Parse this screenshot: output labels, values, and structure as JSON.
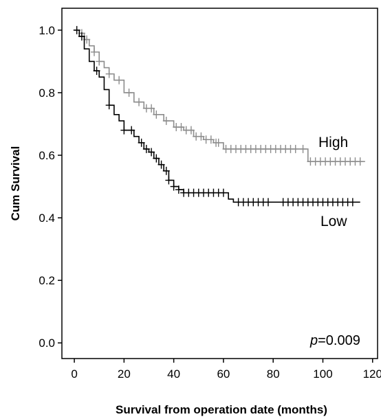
{
  "chart_data": {
    "type": "line",
    "step": true,
    "xlabel": "Survival from operation date (months)",
    "ylabel": "Cum Survival",
    "xlim": [
      -5,
      122
    ],
    "ylim": [
      -0.05,
      1.07
    ],
    "x_ticks": [
      0,
      20,
      40,
      60,
      80,
      100,
      120
    ],
    "y_ticks": [
      "0.0",
      "0.2",
      "0.4",
      "0.6",
      "0.8",
      "1.0"
    ],
    "annotation_italic": "p",
    "annotation_value": "=0.009",
    "series": [
      {
        "name": "High",
        "color": "#8c8c8c",
        "points": [
          [
            0,
            1.0
          ],
          [
            2,
            0.99
          ],
          [
            4,
            0.97
          ],
          [
            6,
            0.95
          ],
          [
            8,
            0.93
          ],
          [
            10,
            0.9
          ],
          [
            12,
            0.88
          ],
          [
            14,
            0.86
          ],
          [
            16,
            0.84
          ],
          [
            20,
            0.8
          ],
          [
            24,
            0.77
          ],
          [
            28,
            0.75
          ],
          [
            32,
            0.73
          ],
          [
            36,
            0.71
          ],
          [
            40,
            0.69
          ],
          [
            44,
            0.68
          ],
          [
            48,
            0.66
          ],
          [
            52,
            0.65
          ],
          [
            56,
            0.64
          ],
          [
            60,
            0.62
          ],
          [
            64,
            0.62
          ],
          [
            90,
            0.62
          ],
          [
            94,
            0.58
          ],
          [
            117,
            0.58
          ]
        ],
        "censor_x": [
          3,
          5,
          8,
          10,
          14,
          18,
          22,
          26,
          29,
          31,
          33,
          37,
          41,
          43,
          45,
          47,
          49,
          51,
          53,
          55,
          57,
          58,
          61,
          63,
          65,
          67,
          69,
          71,
          73,
          75,
          77,
          79,
          81,
          83,
          85,
          87,
          89,
          92,
          95,
          97,
          99,
          101,
          103,
          105,
          107,
          109,
          111,
          113,
          115
        ]
      },
      {
        "name": "Low",
        "color": "#000000",
        "points": [
          [
            0,
            1.0
          ],
          [
            2,
            0.98
          ],
          [
            4,
            0.94
          ],
          [
            6,
            0.9
          ],
          [
            8,
            0.87
          ],
          [
            10,
            0.85
          ],
          [
            12,
            0.81
          ],
          [
            14,
            0.76
          ],
          [
            16,
            0.73
          ],
          [
            18,
            0.71
          ],
          [
            20,
            0.68
          ],
          [
            24,
            0.66
          ],
          [
            26,
            0.64
          ],
          [
            28,
            0.62
          ],
          [
            30,
            0.61
          ],
          [
            32,
            0.59
          ],
          [
            34,
            0.57
          ],
          [
            36,
            0.55
          ],
          [
            38,
            0.52
          ],
          [
            40,
            0.5
          ],
          [
            42,
            0.49
          ],
          [
            44,
            0.48
          ],
          [
            48,
            0.48
          ],
          [
            60,
            0.48
          ],
          [
            62,
            0.46
          ],
          [
            64,
            0.45
          ],
          [
            115,
            0.45
          ]
        ],
        "censor_x": [
          1,
          3,
          9,
          14,
          20,
          23,
          27,
          29,
          31,
          33,
          35,
          37,
          38,
          40,
          42,
          44,
          46,
          48,
          50,
          52,
          54,
          56,
          58,
          60,
          66,
          68,
          70,
          72,
          74,
          76,
          78,
          84,
          86,
          88,
          90,
          92,
          94,
          96,
          98,
          100,
          102,
          104,
          106,
          108,
          110,
          112
        ]
      }
    ]
  }
}
